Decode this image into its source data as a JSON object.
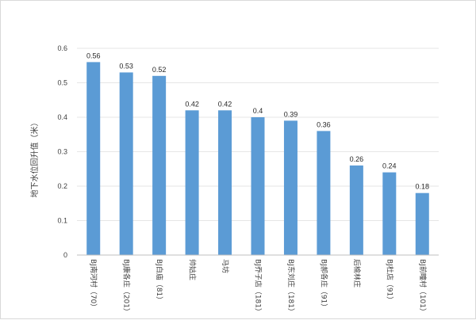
{
  "chart_data": {
    "type": "bar",
    "title": "",
    "xlabel": "",
    "ylabel": "地下水位回升值（米）",
    "ylim": [
      0,
      0.6
    ],
    "yticks": [
      "0",
      "0.1",
      "0.2",
      "0.3",
      "0.4",
      "0.5",
      "0.6"
    ],
    "grid": true,
    "legend": "none",
    "bar_color": "#5b9bd5",
    "categories": [
      "BJ南河村（70）",
      "BJ康各庄（201）",
      "BJ白庙（81）",
      "帅姑庄",
      "马坊",
      "BJ乔子店（181）",
      "BJ东刘庄（181）",
      "BJ郝各庄（91）",
      "后榆林庄",
      "BJ杜店（91）",
      "BJ前疃村（101）"
    ],
    "values": [
      0.56,
      0.53,
      0.52,
      0.42,
      0.42,
      0.4,
      0.39,
      0.36,
      0.26,
      0.24,
      0.18
    ],
    "data_labels": [
      "0.56",
      "0.53",
      "0.52",
      "0.42",
      "0.42",
      "0.4",
      "0.39",
      "0.36",
      "0.26",
      "0.24",
      "0.18"
    ]
  }
}
